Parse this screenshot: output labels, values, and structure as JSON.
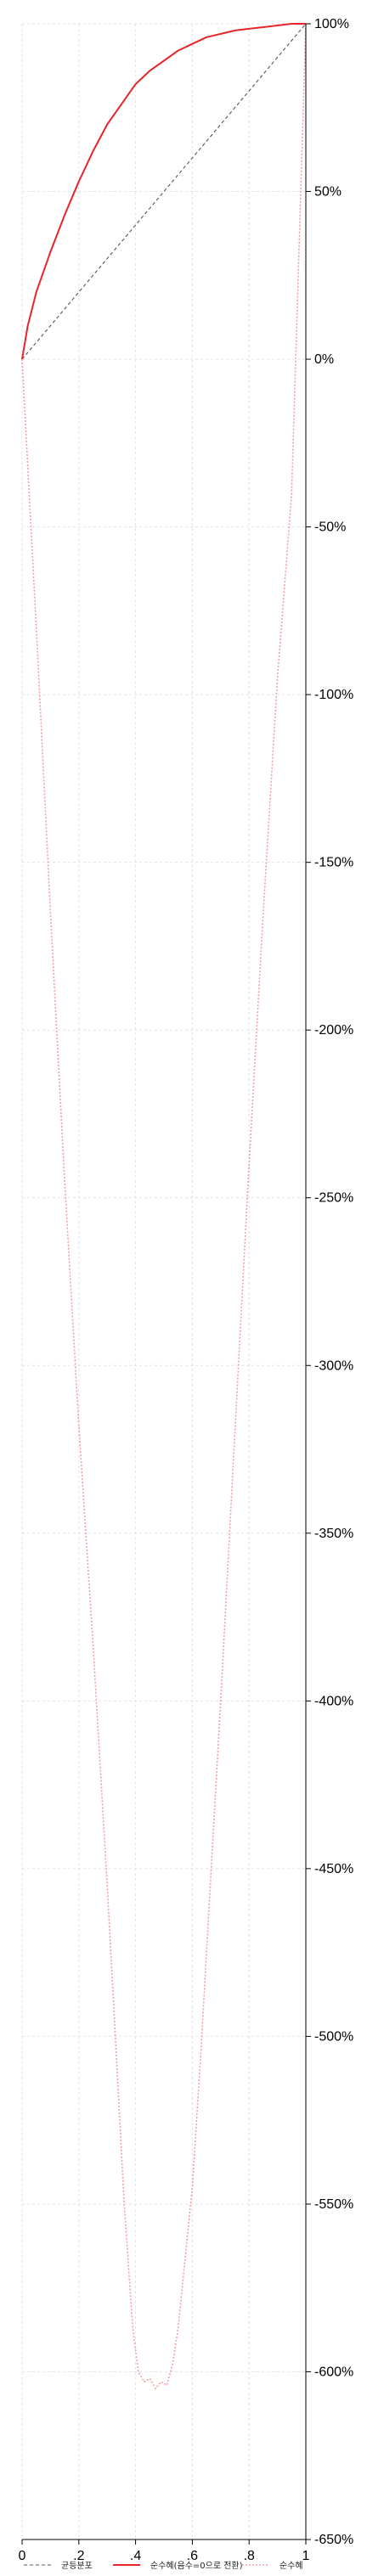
{
  "chart_data": {
    "type": "line",
    "title": "",
    "xlabel": "",
    "ylabel": "",
    "xlim": [
      0,
      1
    ],
    "ylim": [
      -650,
      100
    ],
    "x_ticks": [
      0,
      0.2,
      0.4,
      0.6,
      0.8,
      1
    ],
    "x_tick_labels": [
      "0",
      ".2",
      ".4",
      ".6",
      ".8",
      "1"
    ],
    "y_ticks": [
      100,
      50,
      0,
      -50,
      -100,
      -150,
      -200,
      -250,
      -300,
      -350,
      -400,
      -450,
      -500,
      -550,
      -600,
      -650
    ],
    "y_tick_labels": [
      "100%",
      "50%",
      "0%",
      "-50%",
      "-100%",
      "-150%",
      "-200%",
      "-250%",
      "-300%",
      "-350%",
      "-400%",
      "-450%",
      "-500%",
      "-550%",
      "-600%",
      "-650%"
    ],
    "y_axis_side": "right",
    "grid": true,
    "legend_position": "bottom",
    "series": [
      {
        "name": "균등분포",
        "color": "#555555",
        "style": "dashed",
        "x": [
          0,
          1
        ],
        "y": [
          0,
          100
        ]
      },
      {
        "name": "순수혜(음수=0으로 전환)",
        "color": "#e8252b",
        "style": "solid",
        "x": [
          0,
          0.02,
          0.05,
          0.1,
          0.15,
          0.2,
          0.25,
          0.3,
          0.35,
          0.4,
          0.45,
          0.5,
          0.55,
          0.6,
          0.65,
          0.7,
          0.75,
          0.8,
          0.85,
          0.9,
          0.95,
          1
        ],
        "y": [
          0,
          10,
          20,
          32,
          43,
          53,
          62,
          70,
          76,
          82,
          86,
          89,
          92,
          94,
          96,
          97,
          98,
          98.5,
          99,
          99.5,
          100,
          100
        ]
      },
      {
        "name": "순수혜",
        "color": "#f4a0a0",
        "style": "dotted",
        "x": [
          0,
          0.05,
          0.1,
          0.15,
          0.2,
          0.25,
          0.3,
          0.33,
          0.36,
          0.39,
          0.41,
          0.43,
          0.45,
          0.47,
          0.49,
          0.51,
          0.53,
          0.55,
          0.57,
          0.6,
          0.63,
          0.66,
          0.7,
          0.75,
          0.8,
          0.85,
          0.9,
          0.95,
          1
        ],
        "y": [
          0,
          -80,
          -165,
          -245,
          -318,
          -383,
          -455,
          -502,
          -550,
          -587,
          -600,
          -603,
          -602,
          -605,
          -603,
          -604,
          -598,
          -587,
          -570,
          -545,
          -505,
          -460,
          -400,
          -320,
          -240,
          -165,
          -95,
          -40,
          100
        ]
      }
    ]
  }
}
